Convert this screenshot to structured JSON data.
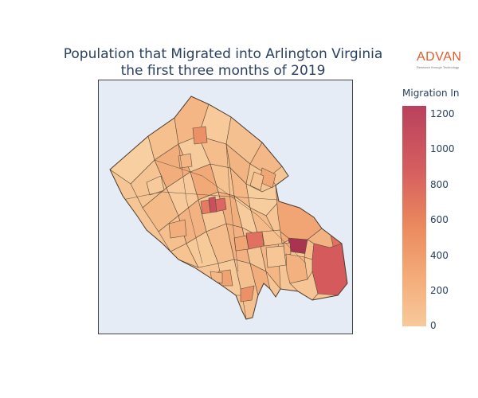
{
  "title": {
    "line1": "Population that Migrated into Arlington Virginia",
    "line2": "the first three months of 2019"
  },
  "logo": {
    "name": "ADVAN",
    "tagline": "Research through Technology",
    "color": "#e85a2a"
  },
  "colorbar": {
    "title": "Migration In",
    "min": 0,
    "max": 1270,
    "ticks": [
      "1200",
      "1000",
      "800",
      "600",
      "400",
      "200",
      "0"
    ],
    "colors": [
      "#b9415d",
      "#d65f5f",
      "#eb8a5e",
      "#f4ac7a",
      "#f7c99b"
    ]
  },
  "map": {
    "region": "Arlington Virginia",
    "background": "#e5ecf6",
    "boundary_color": "#5a4a3a"
  }
}
